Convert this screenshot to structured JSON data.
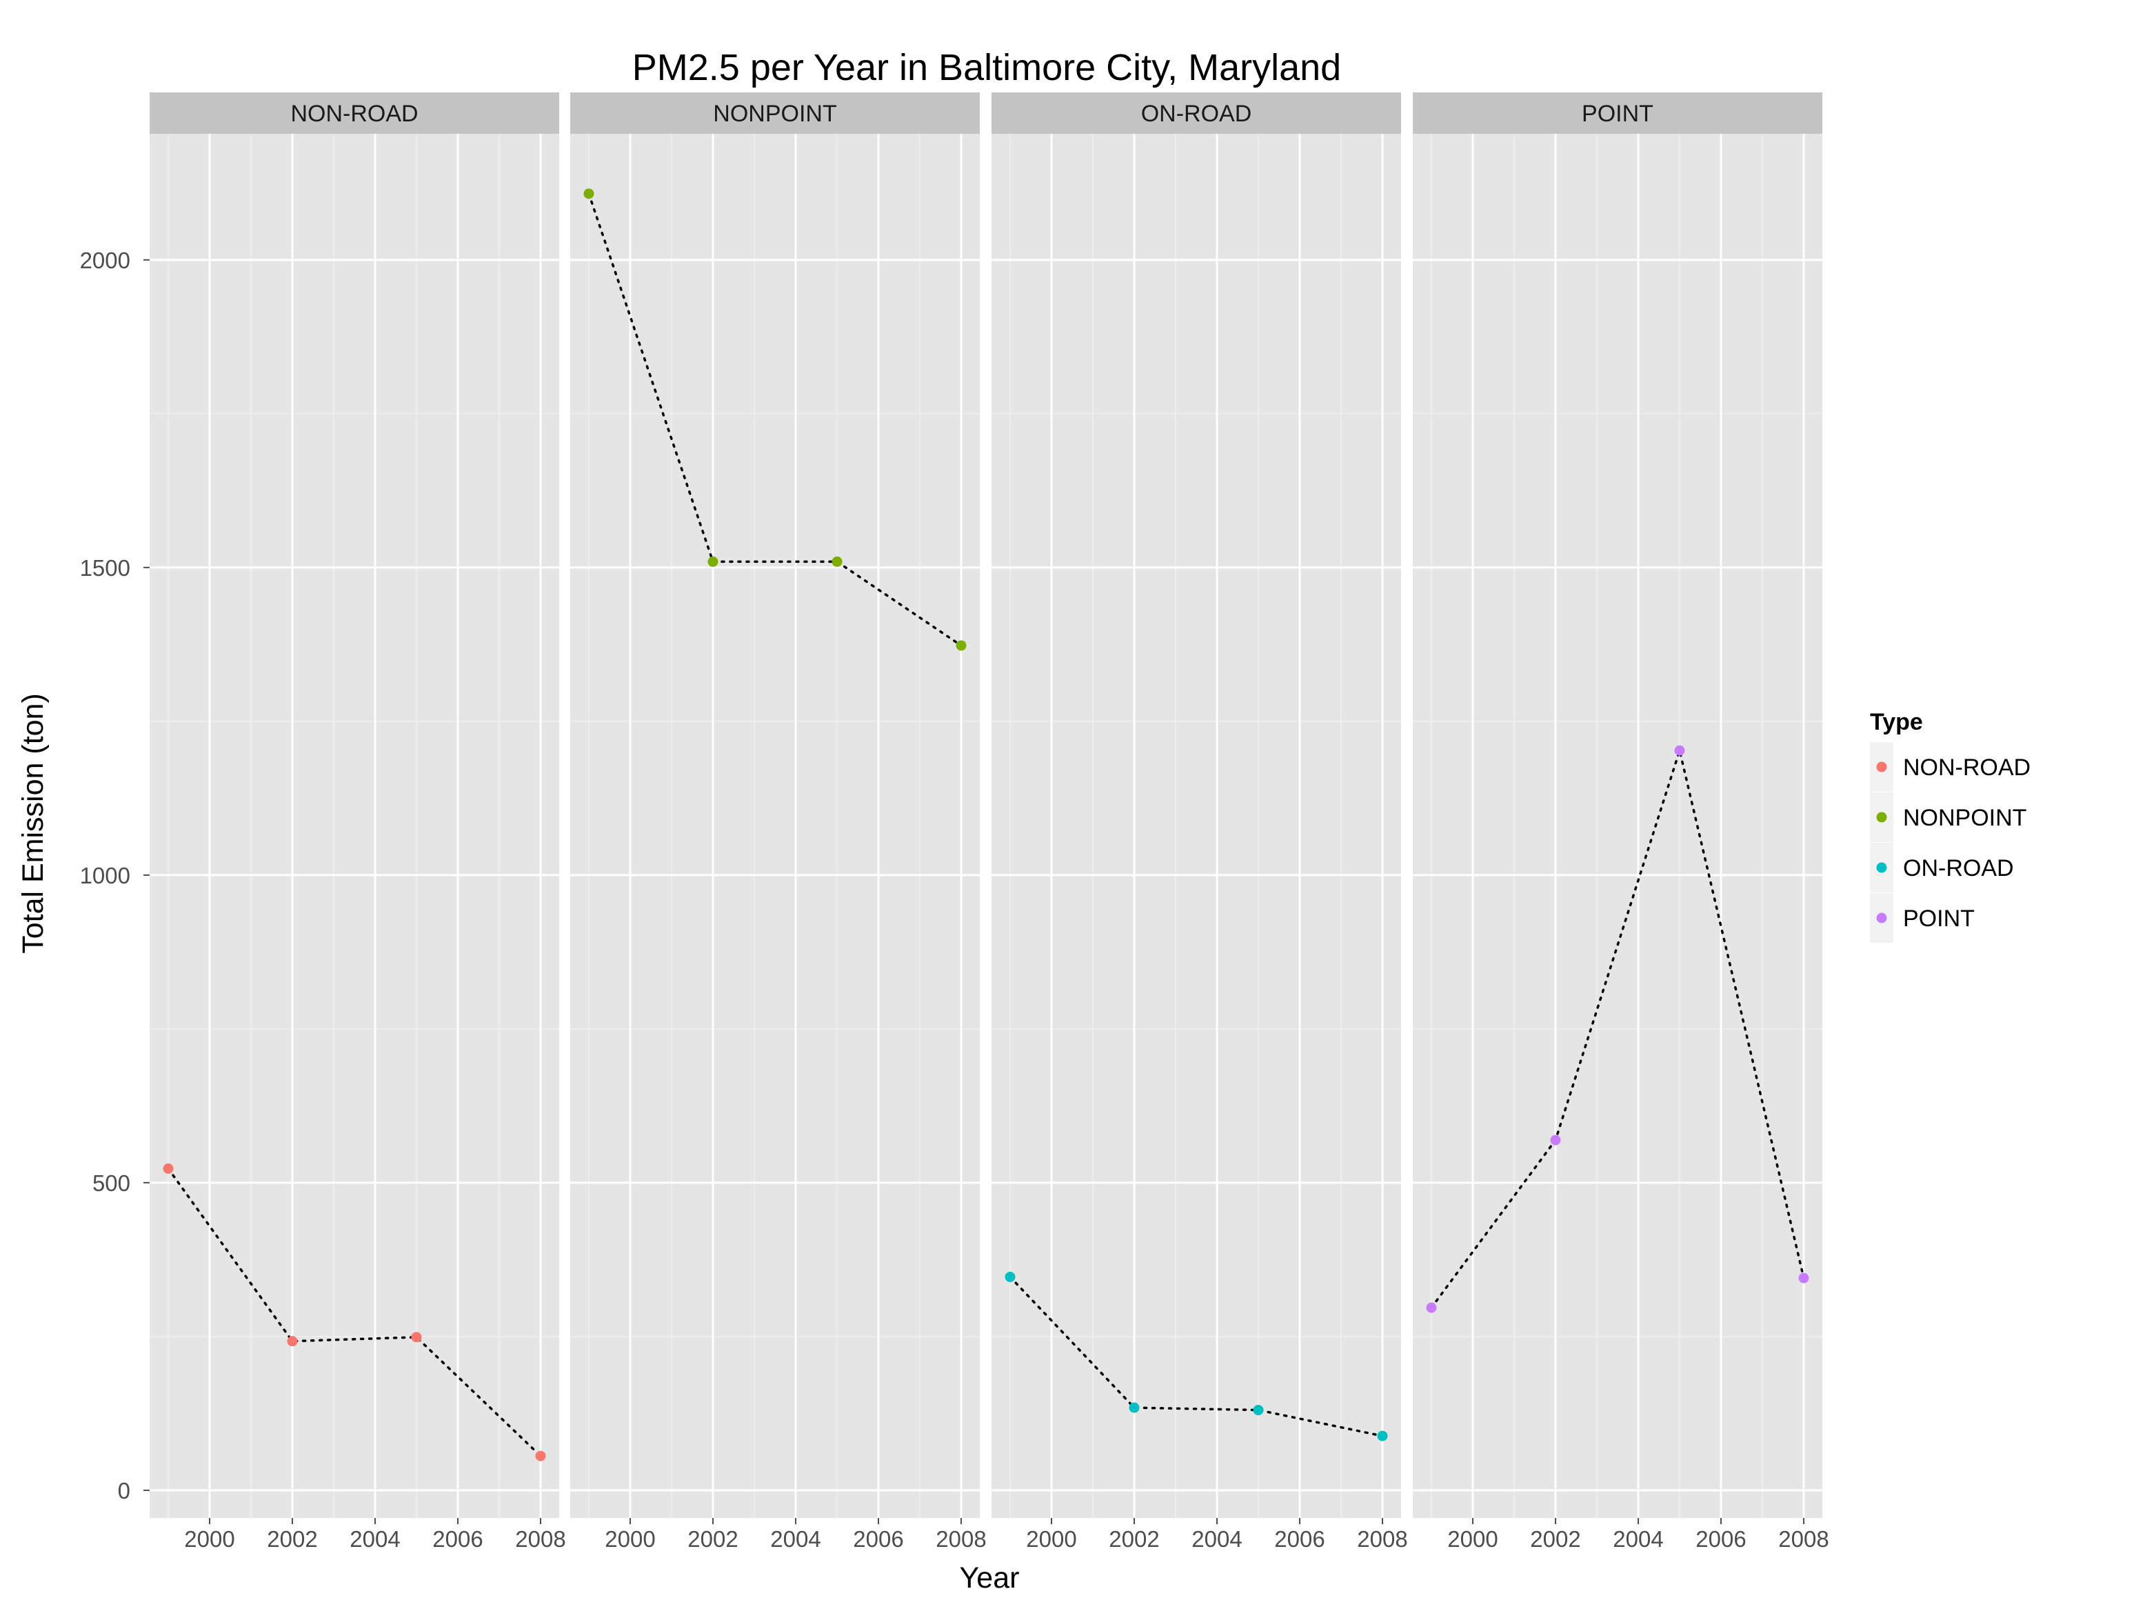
{
  "chart_data": {
    "type": "line",
    "title": "PM2.5 per Year in Baltimore City, Maryland",
    "xlabel": "Year",
    "ylabel": "Total Emission (ton)",
    "x": [
      1999,
      2002,
      2005,
      2008
    ],
    "xticks": [
      "2000",
      "2002",
      "2004",
      "2006",
      "2008"
    ],
    "xtick_values": [
      2000,
      2002,
      2004,
      2006,
      2008
    ],
    "yticks": [
      "0",
      "500",
      "1000",
      "1500",
      "2000"
    ],
    "ytick_values": [
      0,
      500,
      1000,
      1500,
      2000
    ],
    "xlim": [
      1998.55,
      2008.45
    ],
    "ylim": [
      -45,
      2205
    ],
    "grid": true,
    "line_style": "dotted",
    "line_color": "#000000",
    "legend": {
      "title": "Type",
      "placement": "right",
      "entries": [
        "NON-ROAD",
        "NONPOINT",
        "ON-ROAD",
        "POINT"
      ]
    },
    "series": [
      {
        "name": "NON-ROAD",
        "color": "#F8766D",
        "values": [
          522.94,
          242.38,
          248.93,
          55.82
        ]
      },
      {
        "name": "NONPOINT",
        "color": "#7CAE00",
        "values": [
          2107.63,
          1509.5,
          1509.5,
          1373.21
        ]
      },
      {
        "name": "ON-ROAD",
        "color": "#00BFC4",
        "values": [
          346.82,
          134.31,
          130.43,
          88.28
        ]
      },
      {
        "name": "POINT",
        "color": "#C77CFF",
        "values": [
          296.8,
          569.26,
          1202.49,
          344.98
        ]
      }
    ]
  }
}
